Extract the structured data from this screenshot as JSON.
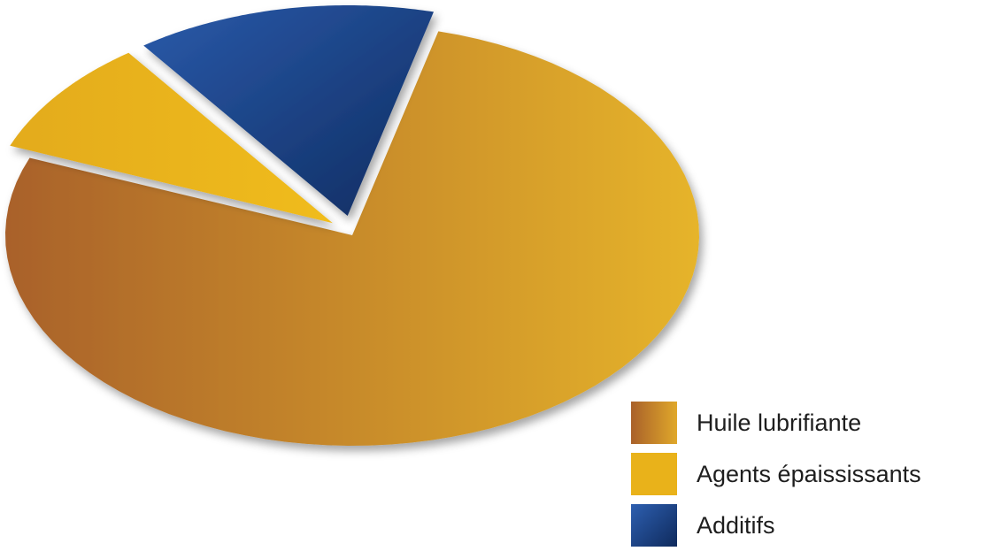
{
  "chart_data": {
    "type": "pie",
    "title": "",
    "slices": [
      {
        "label": "Huile lubrifiante",
        "value": 77,
        "color": "#c58a30",
        "gradient": [
          "#a9612a",
          "#e6b42c"
        ],
        "exploded": false
      },
      {
        "label": "Agents épaississants",
        "value": 9,
        "color": "#e8b218",
        "gradient": [
          "#e3ab1b",
          "#f0bc1f"
        ],
        "exploded": true
      },
      {
        "label": "Additifs",
        "value": 14,
        "color": "#1f4e9c",
        "gradient": [
          "#2a5aaa",
          "#0f2c60"
        ],
        "exploded": true
      }
    ],
    "legend_position": "bottom-right"
  }
}
